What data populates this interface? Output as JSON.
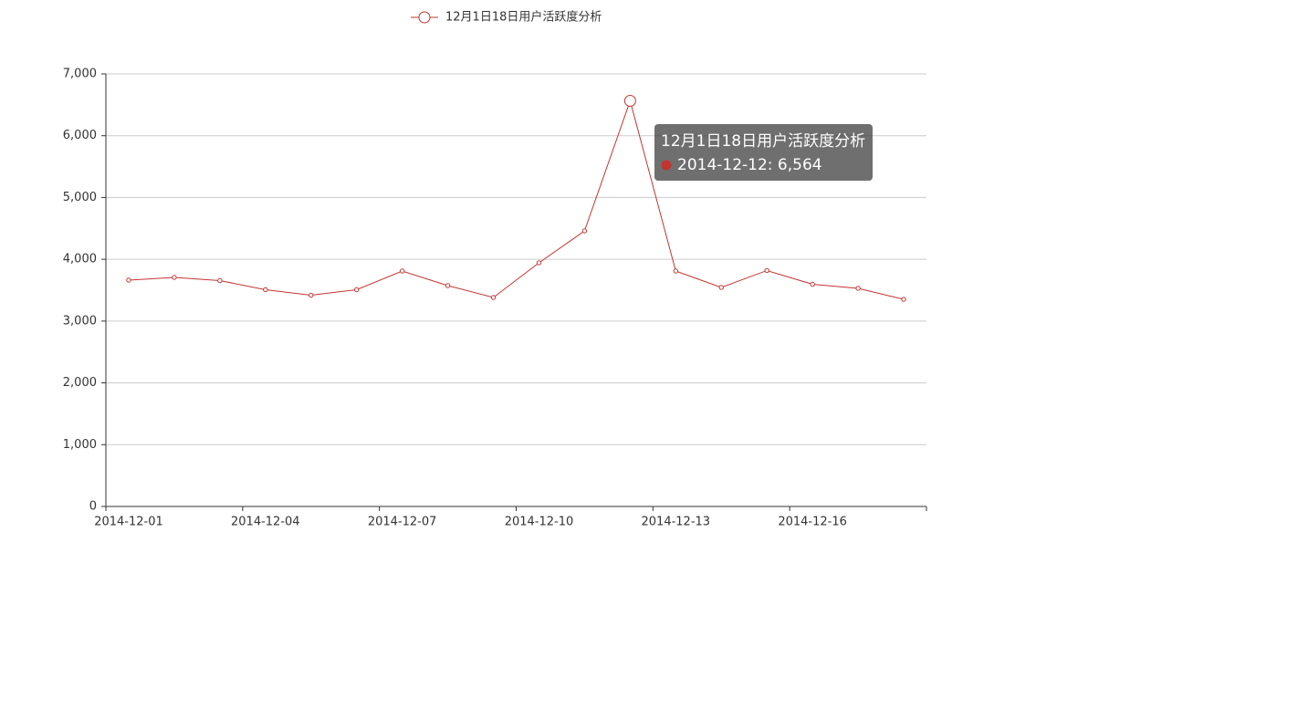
{
  "chart_data": {
    "type": "line",
    "categories": [
      "2014-12-01",
      null,
      null,
      "2014-12-04",
      null,
      null,
      "2014-12-07",
      null,
      null,
      "2014-12-10",
      null,
      null,
      "2014-12-13",
      null,
      null,
      "2014-12-16",
      null,
      null
    ],
    "series": [
      {
        "name": "12月1日18日用户活跃度分析",
        "color": "#c23531",
        "values": [
          3663,
          3707,
          3655,
          3508,
          3419,
          3508,
          3810,
          3574,
          3382,
          3943,
          4460,
          6564,
          3810,
          3545,
          3818,
          3596,
          3530,
          3352
        ]
      }
    ],
    "ylim": [
      0,
      7000
    ],
    "yticks": [
      0,
      {
        "value": 1000,
        "label": "1,000"
      },
      {
        "value": 2000,
        "label": "2,000"
      },
      {
        "value": 3000,
        "label": "3,000"
      },
      {
        "value": 4000,
        "label": "4,000"
      },
      {
        "value": 5000,
        "label": "5,000"
      },
      {
        "value": 6000,
        "label": "6,000"
      },
      {
        "value": 7000,
        "label": "7,000"
      }
    ],
    "grid": true,
    "legend": "top",
    "tooltip": "2014-12-12: 6,564"
  }
}
